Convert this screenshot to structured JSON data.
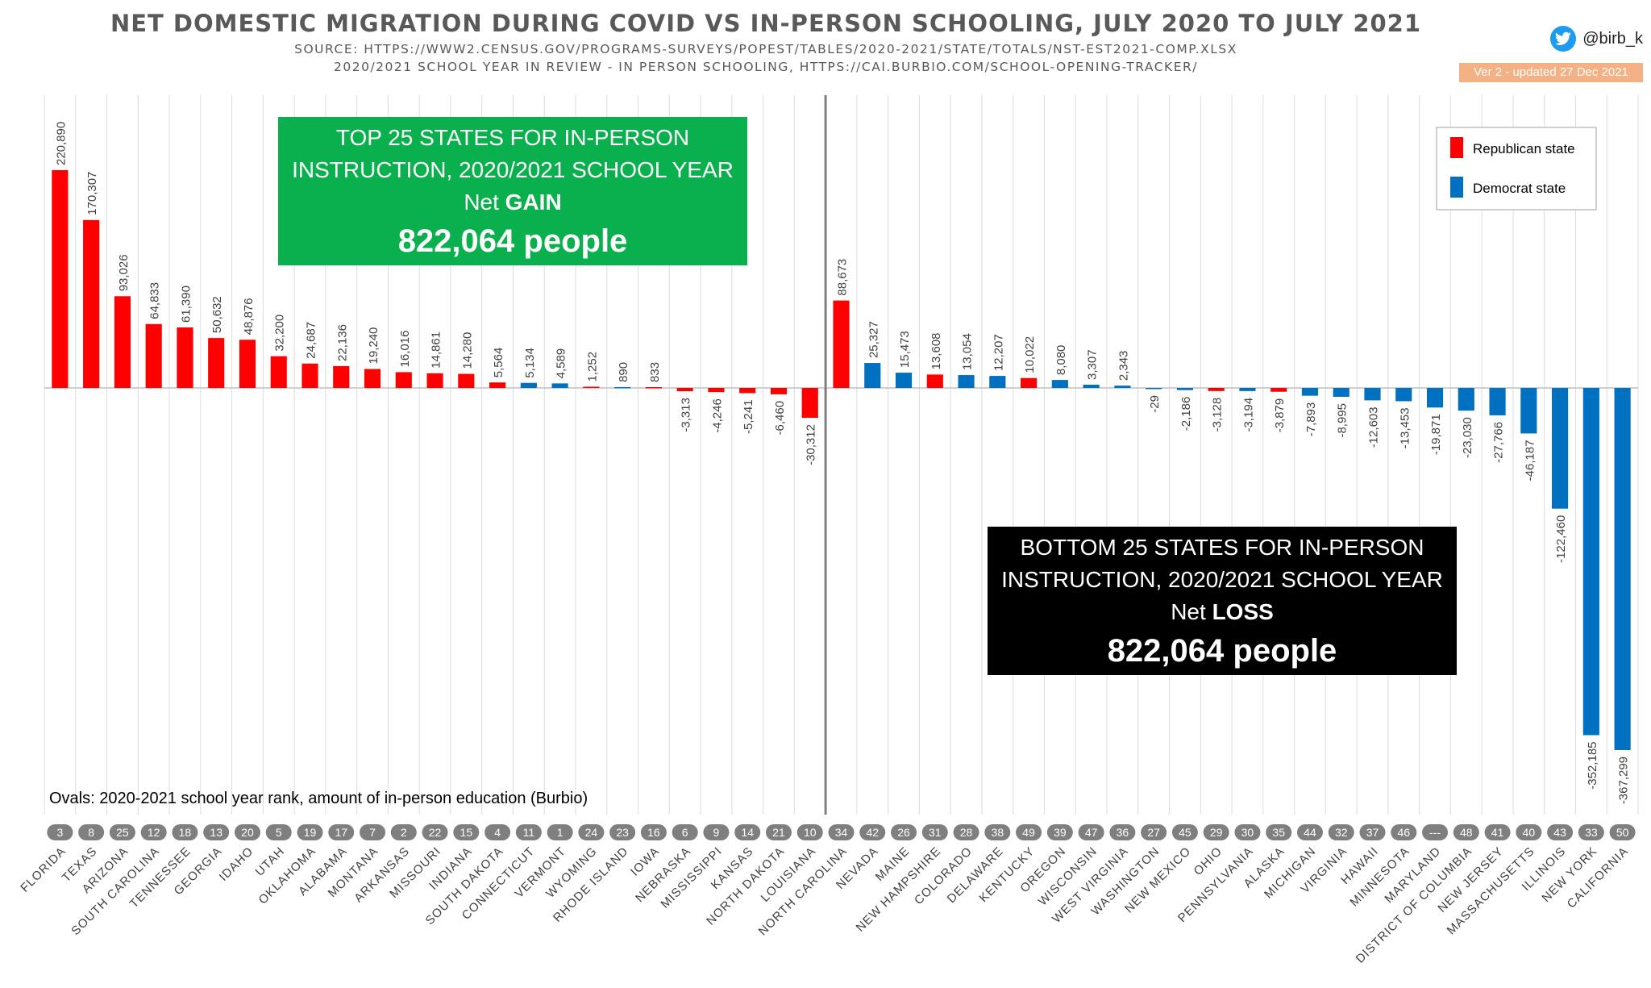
{
  "header": {
    "title": "NET DOMESTIC MIGRATION DURING COVID VS IN-PERSON SCHOOLING, JULY 2020 TO JULY 2021",
    "source_line1": "SOURCE: HTTPS://WWW2.CENSUS.GOV/PROGRAMS-SURVEYS/POPEST/TABLES/2020-2021/STATE/TOTALS/NST-EST2021-COMP.XLSX",
    "source_line2": "2020/2021 SCHOOL YEAR IN REVIEW - IN PERSON SCHOOLING, HTTPS://CAI.BURBIO.COM/SCHOOL-OPENING-TRACKER/",
    "twitter_handle": "@birb_k",
    "twitter_icon": "twitter-bird-icon",
    "version": "Ver 2 - updated 27 Dec 2021"
  },
  "colors": {
    "republican": "#ff0000",
    "democrat": "#0070c0",
    "green_box": "#0bb04e",
    "black_box": "#000000",
    "oval": "#7f7f7f",
    "version_bg": "#f4b183",
    "twitter": "#1d9bf0",
    "text": "#595959"
  },
  "top_box": {
    "line1": "TOP 25 STATES FOR IN-PERSON",
    "line2": "INSTRUCTION, 2020/2021 SCHOOL YEAR",
    "net_prefix": "Net ",
    "net_word": "GAIN",
    "total": "822,064 people"
  },
  "bottom_box": {
    "line1": "BOTTOM 25 STATES FOR IN-PERSON",
    "line2": "INSTRUCTION, 2020/2021 SCHOOL YEAR",
    "net_prefix": "Net ",
    "net_word": "LOSS",
    "total": "822,064 people"
  },
  "oval_note": "Ovals: 2020-2021 school year rank, amount of in-person education (Burbio)",
  "chart_data": {
    "type": "bar",
    "title": "NET DOMESTIC MIGRATION DURING COVID VS IN-PERSON SCHOOLING, JULY 2020 TO JULY 2021",
    "ylim": [
      -390000,
      240000
    ],
    "legend": {
      "position": "top-right",
      "entries": [
        {
          "label": "Republican state",
          "party": "R"
        },
        {
          "label": "Democrat state",
          "party": "D"
        }
      ]
    },
    "categories": [
      "FLORIDA",
      "TEXAS",
      "ARIZONA",
      "SOUTH CAROLINA",
      "TENNESSEE",
      "GEORGIA",
      "IDAHO",
      "UTAH",
      "OKLAHOMA",
      "ALABAMA",
      "MONTANA",
      "ARKANSAS",
      "MISSOURI",
      "INDIANA",
      "SOUTH DAKOTA",
      "CONNECTICUT",
      "VERMONT",
      "WYOMING",
      "RHODE ISLAND",
      "IOWA",
      "NEBRASKA",
      "MISSISSIPPI",
      "KANSAS",
      "NORTH DAKOTA",
      "LOUISIANA",
      "NORTH CAROLINA",
      "NEVADA",
      "MAINE",
      "NEW HAMPSHIRE",
      "COLORADO",
      "DELAWARE",
      "KENTUCKY",
      "OREGON",
      "WISCONSIN",
      "WEST VIRGINIA",
      "WASHINGTON",
      "NEW MEXICO",
      "OHIO",
      "PENNSYLVANIA",
      "ALASKA",
      "MICHIGAN",
      "VIRGINIA",
      "HAWAII",
      "MINNESOTA",
      "MARYLAND",
      "DISTRICT OF COLUMBIA",
      "NEW JERSEY",
      "MASSACHUSETTS",
      "ILLINOIS",
      "NEW YORK",
      "CALIFORNIA"
    ],
    "values": [
      220890,
      170307,
      93026,
      64833,
      61390,
      50632,
      48876,
      32200,
      24687,
      22136,
      19240,
      16016,
      14861,
      14280,
      5564,
      5134,
      4589,
      1252,
      890,
      833,
      -3313,
      -4246,
      -5241,
      -6460,
      -30312,
      88673,
      25327,
      15473,
      13608,
      13054,
      12207,
      10022,
      8080,
      3307,
      2343,
      -29,
      -2186,
      -3128,
      -3194,
      -3879,
      -7893,
      -8995,
      -12603,
      -13453,
      -19871,
      -23030,
      -27766,
      -46187,
      -122460,
      -352185,
      -367299
    ],
    "labels": [
      "220,890",
      "170,307",
      "93,026",
      "64,833",
      "61,390",
      "50,632",
      "48,876",
      "32,200",
      "24,687",
      "22,136",
      "19,240",
      "16,016",
      "14,861",
      "14,280",
      "5,564",
      "5,134",
      "4,589",
      "1,252",
      "890",
      "833",
      "-3,313",
      "-4,246",
      "-5,241",
      "-6,460",
      "-30,312",
      "88,673",
      "25,327",
      "15,473",
      "13,608",
      "13,054",
      "12,207",
      "10,022",
      "8,080",
      "3,307",
      "2,343",
      "-29",
      "-2,186",
      "-3,128",
      "-3,194",
      "-3,879",
      "-7,893",
      "-8,995",
      "-12,603",
      "-13,453",
      "-19,871",
      "-23,030",
      "-27,766",
      "-46,187",
      "-122,460",
      "-352,185",
      "-367,299"
    ],
    "party": [
      "R",
      "R",
      "R",
      "R",
      "R",
      "R",
      "R",
      "R",
      "R",
      "R",
      "R",
      "R",
      "R",
      "R",
      "R",
      "D",
      "D",
      "R",
      "D",
      "R",
      "R",
      "R",
      "R",
      "R",
      "R",
      "R",
      "D",
      "D",
      "R",
      "D",
      "D",
      "R",
      "D",
      "D",
      "D",
      "D",
      "D",
      "R",
      "D",
      "R",
      "D",
      "D",
      "D",
      "D",
      "D",
      "D",
      "D",
      "D",
      "D",
      "D",
      "D"
    ],
    "ranks": [
      "3",
      "8",
      "25",
      "12",
      "18",
      "13",
      "20",
      "5",
      "19",
      "17",
      "7",
      "2",
      "22",
      "15",
      "4",
      "11",
      "1",
      "24",
      "23",
      "16",
      "6",
      "9",
      "14",
      "21",
      "10",
      "34",
      "42",
      "26",
      "31",
      "28",
      "38",
      "49",
      "39",
      "47",
      "36",
      "27",
      "45",
      "29",
      "30",
      "35",
      "44",
      "32",
      "37",
      "46",
      "---",
      "48",
      "41",
      "40",
      "43",
      "33",
      "50"
    ]
  }
}
